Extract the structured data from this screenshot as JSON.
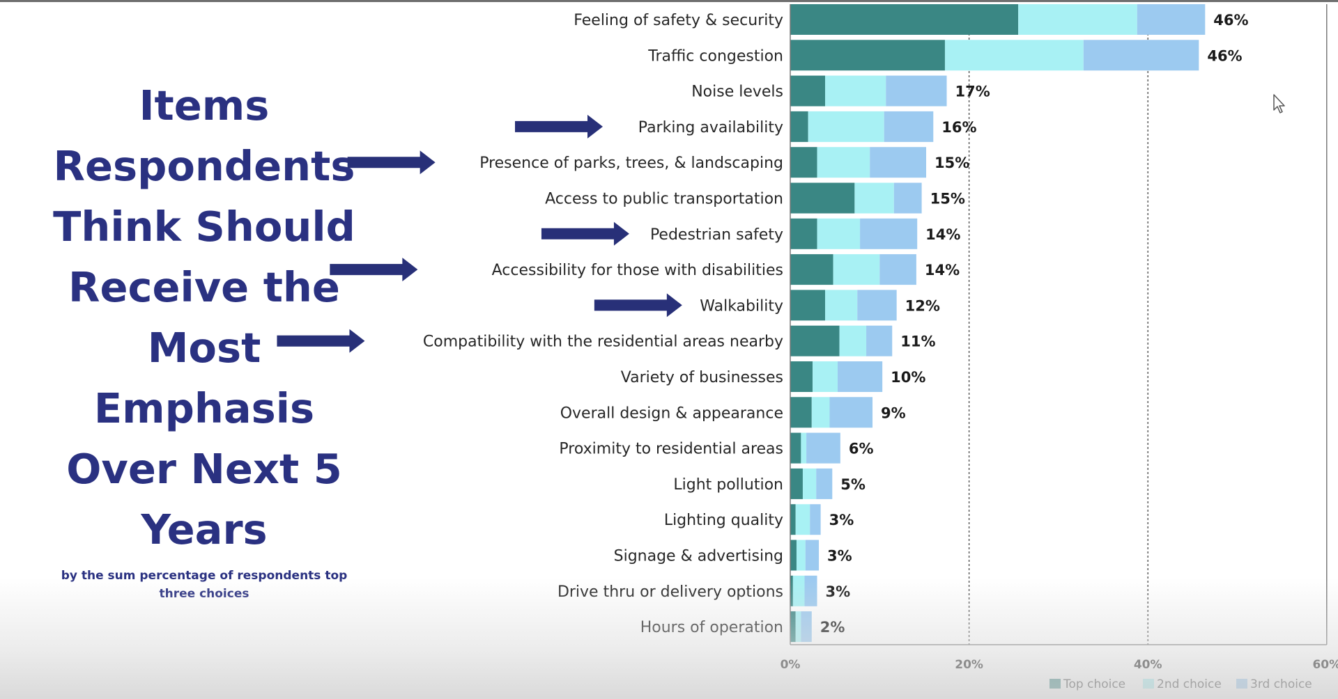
{
  "title": "Items Respondents Think Should Receive the Most Emphasis Over Next 5 Years",
  "title_lines": [
    "Items",
    "Respondents",
    "Think Should",
    "Receive the",
    "Most",
    "Emphasis",
    "Over Next 5",
    "Years"
  ],
  "subtitle": "by the sum percentage of respondents top three choices",
  "colors": {
    "title": "#2a3181",
    "arrow": "#283078",
    "top_choice": "#3a8784",
    "second_choice": "#a8f1f4",
    "third_choice": "#9ccaf0"
  },
  "chart_data": {
    "type": "bar",
    "orientation": "horizontal",
    "stacked": true,
    "xlim": [
      0,
      60
    ],
    "xticks": [
      0,
      20,
      40,
      60
    ],
    "xtick_labels": [
      "0%",
      "20%",
      "40%",
      "60%"
    ],
    "gridlines": "dashed vertical at 20% and 40%",
    "legend_position": "bottom-right",
    "categories": [
      "Feeling of safety & security",
      "Traffic congestion",
      "Noise levels",
      "Parking availability",
      "Presence of parks, trees, & landscaping",
      "Access to public transportation",
      "Pedestrian safety",
      "Accessibility for those with disabilities",
      "Walkability",
      "Compatibility with the residential areas nearby",
      "Variety of businesses",
      "Overall design & appearance",
      "Proximity to residential areas",
      "Light pollution",
      "Lighting quality",
      "Signage & advertising",
      "Drive thru or delivery options",
      "Hours of operation"
    ],
    "highlighted_with_arrow": [
      "Parking availability",
      "Presence of parks, trees, & landscaping",
      "Pedestrian safety",
      "Accessibility for those with disabilities",
      "Walkability",
      "Compatibility with the residential areas nearby"
    ],
    "series": [
      {
        "name": "Top choice",
        "values": [
          25.5,
          17.3,
          3.9,
          2.0,
          3.0,
          7.2,
          3.0,
          4.8,
          3.9,
          5.5,
          2.5,
          2.4,
          1.2,
          1.4,
          0.6,
          0.7,
          0.3,
          0.6
        ]
      },
      {
        "name": "2nd choice",
        "values": [
          13.3,
          15.5,
          6.8,
          8.5,
          5.9,
          4.4,
          4.8,
          5.2,
          3.6,
          3.0,
          2.8,
          2.0,
          0.6,
          1.5,
          1.6,
          1.0,
          1.3,
          0.6
        ]
      },
      {
        "name": "3rd choice",
        "values": [
          7.6,
          12.9,
          6.8,
          5.5,
          6.3,
          3.1,
          6.4,
          4.1,
          4.4,
          2.9,
          5.0,
          4.8,
          3.8,
          1.8,
          1.2,
          1.5,
          1.4,
          1.2
        ]
      }
    ],
    "value_labels": [
      "46%",
      "46%",
      "17%",
      "16%",
      "15%",
      "15%",
      "14%",
      "14%",
      "12%",
      "11%",
      "10%",
      "9%",
      "6%",
      "5%",
      "3%",
      "3%",
      "3%",
      "2%"
    ]
  }
}
